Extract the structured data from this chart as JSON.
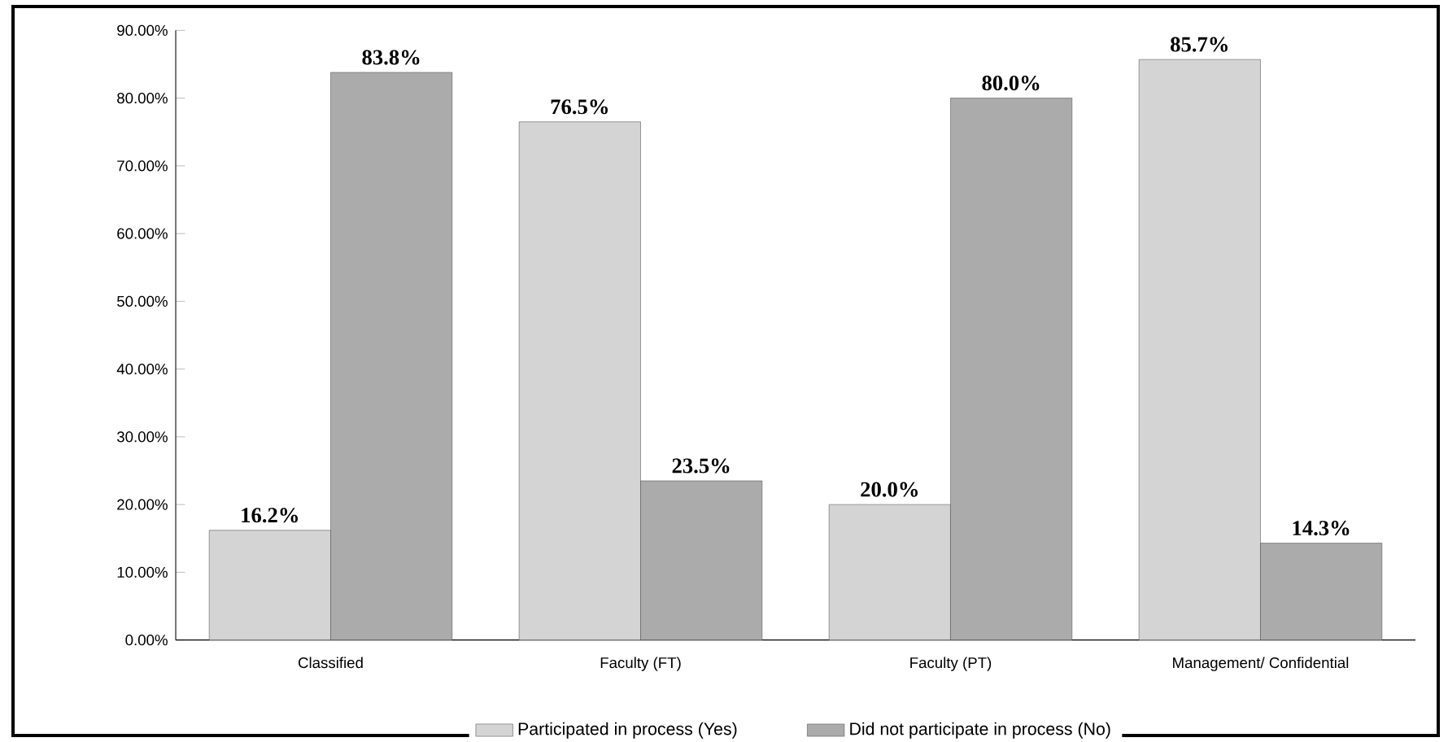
{
  "chart_data": {
    "type": "bar",
    "categories": [
      "Classified",
      "Faculty (FT)",
      "Faculty (PT)",
      "Management/ Confidential"
    ],
    "series": [
      {
        "name": "Participated in process (Yes)",
        "color": "#d4d4d4",
        "values": [
          16.2,
          76.5,
          20.0,
          85.7
        ],
        "value_labels": [
          "16.2%",
          "76.5%",
          "20.0%",
          "85.7%"
        ]
      },
      {
        "name": "Did not participate in process (No)",
        "color": "#ababab",
        "values": [
          83.8,
          23.5,
          80.0,
          14.3
        ],
        "value_labels": [
          "83.8%",
          "23.5%",
          "80.0%",
          "14.3%"
        ]
      }
    ],
    "ylim": [
      0,
      90
    ],
    "yticks": [
      {
        "value": 0,
        "label": "0.00%"
      },
      {
        "value": 10,
        "label": "10.00%"
      },
      {
        "value": 20,
        "label": "20.00%"
      },
      {
        "value": 30,
        "label": "30.00%"
      },
      {
        "value": 40,
        "label": "40.00%"
      },
      {
        "value": 50,
        "label": "50.00%"
      },
      {
        "value": 60,
        "label": "60.00%"
      },
      {
        "value": 70,
        "label": "70.00%"
      },
      {
        "value": 80,
        "label": "80.00%"
      },
      {
        "value": 90,
        "label": "90.00%"
      }
    ],
    "grid": false,
    "legend": "bottom"
  }
}
